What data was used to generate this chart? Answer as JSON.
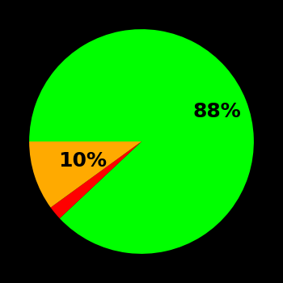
{
  "slices": [
    88,
    2,
    10
  ],
  "colors": [
    "#00ff00",
    "#ff0000",
    "#ffaa00"
  ],
  "background_color": "#000000",
  "text_color": "#000000",
  "startangle": 180,
  "pctdistance_green": 0.72,
  "pctdistance_yellow": 0.55,
  "fontsize": 18,
  "figsize": [
    3.5,
    3.5
  ],
  "dpi": 100
}
